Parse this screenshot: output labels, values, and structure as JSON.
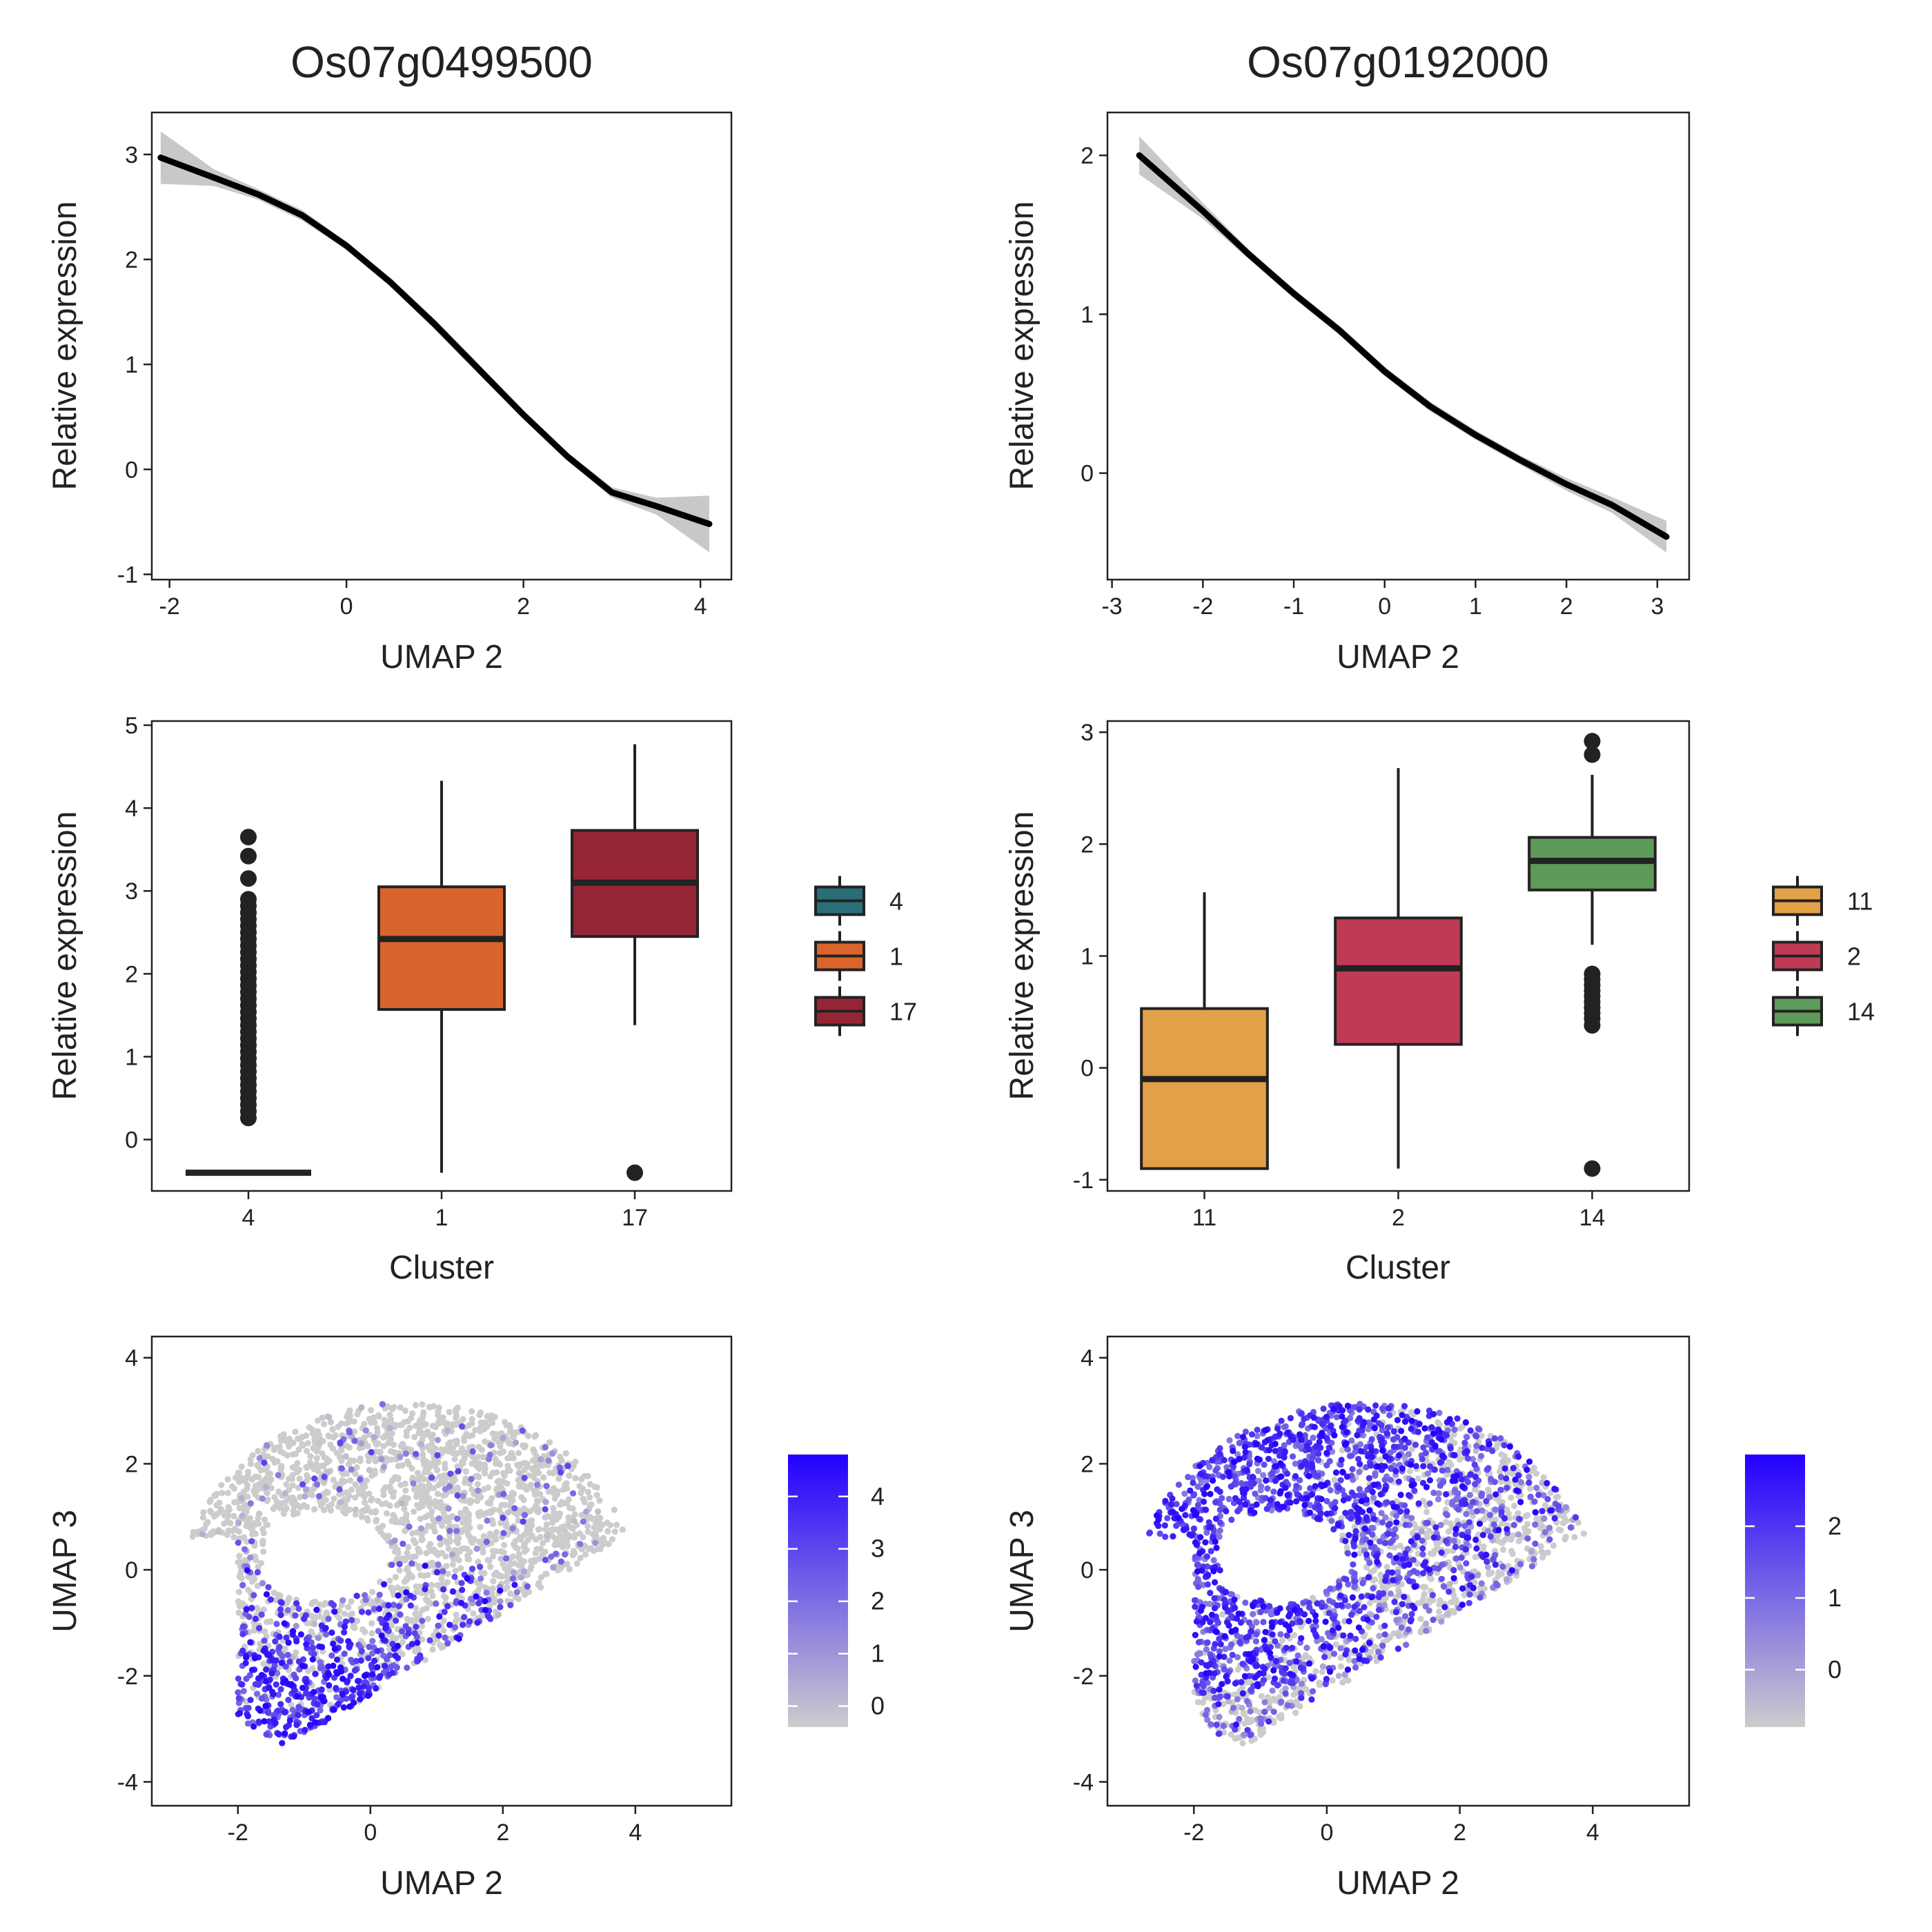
{
  "titles": [
    "Os07g0499500",
    "Os07g0192000"
  ],
  "colors": {
    "cluster_4": "#2a6e78",
    "cluster_1": "#d9652c",
    "cluster_17": "#952535",
    "cluster_11": "#e2a047",
    "cluster_2": "#bf3a55",
    "cluster_14": "#5e9a58",
    "expr_low": "#cccccc",
    "expr_high": "#2200ff",
    "band": "#c8c8c8"
  },
  "chart_data": [
    {
      "id": "trend-left",
      "type": "line",
      "xlabel": "UMAP 2",
      "ylabel": "Relative expression",
      "xlim": [
        -2.2,
        4.35
      ],
      "ylim": [
        -1.05,
        3.4
      ],
      "xticks": [
        -2,
        0,
        2,
        4
      ],
      "yticks": [
        -1,
        0,
        1,
        2,
        3
      ],
      "series": [
        {
          "x": [
            -2.1,
            -1.5,
            -1.0,
            -0.5,
            0.0,
            0.5,
            1.0,
            1.5,
            2.0,
            2.5,
            3.0,
            3.5,
            4.1
          ],
          "y": [
            2.97,
            2.78,
            2.62,
            2.42,
            2.13,
            1.78,
            1.38,
            0.95,
            0.52,
            0.12,
            -0.22,
            -0.35,
            -0.52
          ],
          "band": [
            0.25,
            0.08,
            0.05,
            0.05,
            0.04,
            0.04,
            0.05,
            0.05,
            0.04,
            0.04,
            0.05,
            0.08,
            0.27
          ]
        }
      ]
    },
    {
      "id": "trend-right",
      "type": "line",
      "xlabel": "UMAP 2",
      "ylabel": "Relative expression",
      "xlim": [
        -3.05,
        3.35
      ],
      "ylim": [
        -0.67,
        2.27
      ],
      "xticks": [
        -3,
        -2,
        -1,
        0,
        1,
        2,
        3
      ],
      "yticks": [
        0,
        1,
        2
      ],
      "series": [
        {
          "x": [
            -2.7,
            -2.0,
            -1.5,
            -1.0,
            -0.5,
            0.0,
            0.5,
            1.0,
            1.5,
            2.0,
            2.5,
            3.1
          ],
          "y": [
            2.0,
            1.65,
            1.38,
            1.13,
            0.9,
            0.64,
            0.42,
            0.24,
            0.08,
            -0.07,
            -0.2,
            -0.4
          ],
          "band": [
            0.12,
            0.05,
            0.03,
            0.03,
            0.03,
            0.03,
            0.03,
            0.03,
            0.03,
            0.04,
            0.05,
            0.1
          ]
        }
      ]
    },
    {
      "id": "box-left",
      "type": "box",
      "xlabel": "Cluster",
      "ylabel": "Relative expression",
      "categories": [
        "4",
        "1",
        "17"
      ],
      "ylim": [
        -0.62,
        5.05
      ],
      "yticks": [
        0,
        1,
        2,
        3,
        4,
        5
      ],
      "legend": [
        "4",
        "1",
        "17"
      ],
      "boxes": [
        {
          "name": "4",
          "color_key": "cluster_4",
          "min": -0.4,
          "q1": -0.4,
          "median": -0.4,
          "q3": -0.4,
          "max": -0.4,
          "outliers": [
            3.65,
            3.42,
            3.15,
            2.9,
            2.82,
            2.74,
            2.66,
            2.58,
            2.5,
            2.42,
            2.34,
            2.26,
            2.18,
            2.1,
            2.02,
            1.94,
            1.86,
            1.78,
            1.7,
            1.62,
            1.54,
            1.46,
            1.38,
            1.3,
            1.22,
            1.14,
            1.06,
            0.98,
            0.9,
            0.82,
            0.74,
            0.66,
            0.58,
            0.5,
            0.42,
            0.34,
            0.26
          ]
        },
        {
          "name": "1",
          "color_key": "cluster_1",
          "min": -0.4,
          "q1": 1.57,
          "median": 2.42,
          "q3": 3.05,
          "max": 4.33,
          "outliers": []
        },
        {
          "name": "17",
          "color_key": "cluster_17",
          "min": 1.38,
          "q1": 2.45,
          "median": 3.1,
          "q3": 3.73,
          "max": 4.77,
          "outliers": [
            -0.4
          ]
        }
      ]
    },
    {
      "id": "box-right",
      "type": "box",
      "xlabel": "Cluster",
      "ylabel": "Relative expression",
      "categories": [
        "11",
        "2",
        "14"
      ],
      "ylim": [
        -1.1,
        3.1
      ],
      "yticks": [
        -1,
        0,
        1,
        2,
        3
      ],
      "legend": [
        "11",
        "2",
        "14"
      ],
      "boxes": [
        {
          "name": "11",
          "color_key": "cluster_11",
          "min": -0.9,
          "q1": -0.9,
          "median": -0.1,
          "q3": 0.53,
          "max": 1.57,
          "outliers": []
        },
        {
          "name": "2",
          "color_key": "cluster_2",
          "min": -0.9,
          "q1": 0.21,
          "median": 0.89,
          "q3": 1.34,
          "max": 2.68,
          "outliers": []
        },
        {
          "name": "14",
          "color_key": "cluster_14",
          "min": 1.1,
          "q1": 1.59,
          "median": 1.85,
          "q3": 2.06,
          "max": 2.62,
          "outliers": [
            2.92,
            2.8,
            0.84,
            0.79,
            0.74,
            0.69,
            0.64,
            0.59,
            0.54,
            0.49,
            0.44,
            0.38,
            -0.9
          ]
        }
      ]
    },
    {
      "id": "umap-left",
      "type": "scatter",
      "xlabel": "UMAP 2",
      "ylabel": "UMAP 3",
      "xlim": [
        -3.3,
        5.45
      ],
      "ylim": [
        -4.45,
        4.4
      ],
      "xticks": [
        -2,
        0,
        2,
        4
      ],
      "yticks": [
        -4,
        -2,
        0,
        2,
        4
      ],
      "color_range": [
        -0.4,
        4.8
      ],
      "colorbar_ticks": [
        0,
        1,
        2,
        3,
        4
      ],
      "pattern": "lower"
    },
    {
      "id": "umap-right",
      "type": "scatter",
      "xlabel": "UMAP 2",
      "ylabel": "UMAP 3",
      "xlim": [
        -3.3,
        5.45
      ],
      "ylim": [
        -4.45,
        4.4
      ],
      "xticks": [
        -2,
        0,
        2,
        4
      ],
      "yticks": [
        -4,
        -2,
        0,
        2,
        4
      ],
      "color_range": [
        -0.8,
        3.0
      ],
      "colorbar_ticks": [
        0,
        1,
        2
      ],
      "pattern": "upper-left"
    }
  ]
}
